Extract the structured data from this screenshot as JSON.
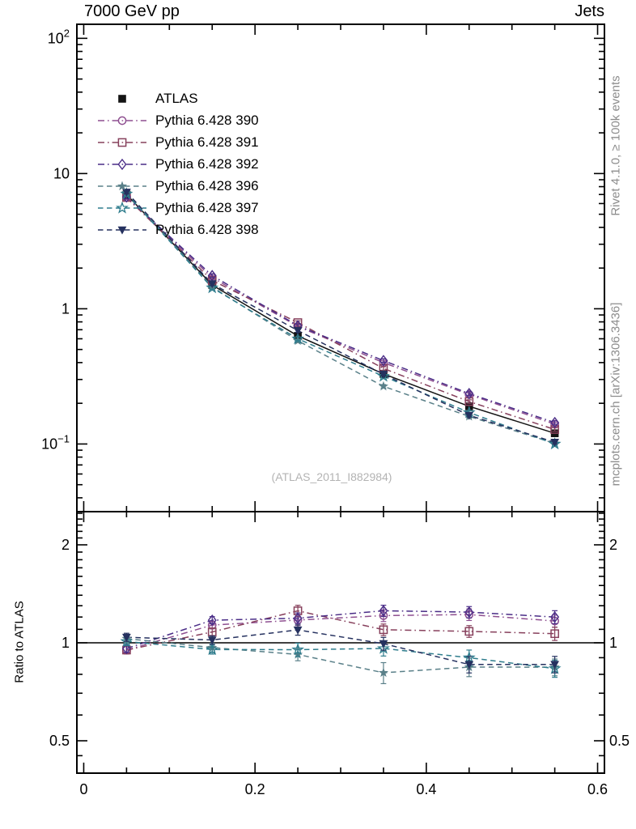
{
  "header": {
    "title": "7000 GeV pp",
    "right": "Jets"
  },
  "margin": {
    "top_text": "Rivet 4.1.0, ≥ 100k events",
    "bottom_text": "mcplots.cern.ch [arXiv:1306.3436]"
  },
  "main_panel": {
    "watermark": "(ATLAS_2011_I882984)"
  },
  "ratio_panel": {
    "ylabel": "Ratio to ATLAS"
  },
  "chart_data": {
    "type": "line",
    "title": "7000 GeV pp",
    "title_right": "Jets",
    "x_values": [
      0.05,
      0.15,
      0.25,
      0.35,
      0.45,
      0.55
    ],
    "xlim": [
      -0.008,
      0.608
    ],
    "x_axis": {
      "minor_step": 0.05,
      "tick_labels": [
        {
          "text": "0",
          "value": 0.0
        },
        {
          "text": "0.2",
          "value": 0.2
        },
        {
          "text": "0.4",
          "value": 0.4
        },
        {
          "text": "0.6",
          "value": 0.6
        }
      ]
    },
    "main_axis": {
      "scale": "log",
      "ylim": [
        0.0316,
        127.0
      ],
      "tick_labels": [
        {
          "text": "10",
          "exp": "2",
          "value": 100
        },
        {
          "text": "10",
          "exp": "",
          "value": 10
        },
        {
          "text": "1",
          "exp": "",
          "value": 1
        },
        {
          "text": "10",
          "exp": "−1",
          "value": 0.1
        }
      ]
    },
    "ratio_axis": {
      "scale": "log",
      "ylim": [
        0.398,
        2.53
      ],
      "reference": 1,
      "tick_labels": [
        {
          "text": "2",
          "value": 2
        },
        {
          "text": "1",
          "value": 1
        },
        {
          "text": "0.5",
          "value": 0.5
        }
      ]
    },
    "series": [
      {
        "label": "ATLAS",
        "color": "#141414",
        "marker": "filled-square",
        "line": "solid",
        "in_ratio": false,
        "main_rel_err": 0.035,
        "values": [
          7.0,
          1.5,
          0.63,
          0.33,
          0.19,
          0.12
        ]
      },
      {
        "label": "Pythia 6.428 390",
        "color": "#8e4f90",
        "marker": "open-circle",
        "line": "dashdot",
        "in_ratio": true,
        "main_rel_err": 0.03,
        "values": [
          6.65,
          1.7,
          0.74,
          0.4,
          0.232,
          0.14
        ],
        "ratio_err": [
          0.025,
          0.03,
          0.045,
          0.05,
          0.05,
          0.05
        ]
      },
      {
        "label": "Pythia 6.428 391",
        "color": "#87405c",
        "marker": "open-square",
        "line": "dashdot",
        "in_ratio": true,
        "main_rel_err": 0.03,
        "values": [
          6.65,
          1.62,
          0.79,
          0.362,
          0.206,
          0.128
        ],
        "ratio_err": [
          0.025,
          0.03,
          0.05,
          0.045,
          0.045,
          0.05
        ]
      },
      {
        "label": "Pythia 6.428 392",
        "color": "#4a2d87",
        "marker": "open-diamond",
        "line": "dashdot",
        "in_ratio": true,
        "main_rel_err": 0.03,
        "values": [
          6.72,
          1.76,
          0.75,
          0.414,
          0.236,
          0.144
        ],
        "ratio_err": [
          0.025,
          0.03,
          0.045,
          0.05,
          0.05,
          0.055
        ]
      },
      {
        "label": "Pythia 6.428 396",
        "color": "#5a8089",
        "marker": "filled-star",
        "line": "dashed",
        "in_ratio": true,
        "main_rel_err": 0.03,
        "values": [
          7.21,
          1.45,
          0.58,
          0.267,
          0.16,
          0.101
        ],
        "ratio_err": [
          0.03,
          0.03,
          0.04,
          0.06,
          0.055,
          0.05
        ]
      },
      {
        "label": "Pythia 6.428 397",
        "color": "#2f7d8d",
        "marker": "open-star",
        "line": "dashed",
        "in_ratio": true,
        "main_rel_err": 0.03,
        "values": [
          7.07,
          1.43,
          0.6,
          0.317,
          0.171,
          0.1
        ],
        "ratio_err": [
          0.03,
          0.03,
          0.045,
          0.05,
          0.05,
          0.05
        ]
      },
      {
        "label": "Pythia 6.428 398",
        "color": "#25315f",
        "marker": "filled-triangle-down",
        "line": "dashed",
        "in_ratio": true,
        "main_rel_err": 0.03,
        "values": [
          7.28,
          1.53,
          0.69,
          0.328,
          0.163,
          0.103
        ],
        "ratio_err": [
          0.03,
          0.03,
          0.04,
          0.045,
          0.05,
          0.05
        ]
      }
    ]
  }
}
